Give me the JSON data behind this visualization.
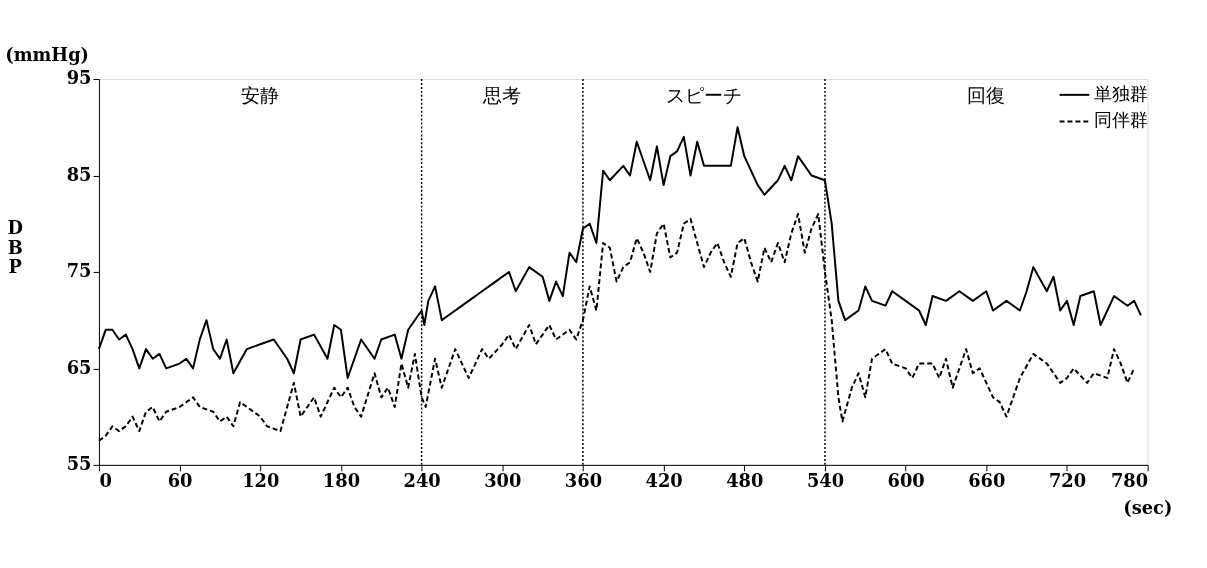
{
  "chart_data": {
    "type": "line",
    "xlabel": "(sec)",
    "ylabel": "DBP",
    "annotations": [
      "(mmHg)",
      "安静",
      "思考",
      "スピーチ",
      "回復"
    ],
    "xlim": [
      0,
      780
    ],
    "xticks": [
      0,
      60,
      120,
      180,
      240,
      300,
      360,
      420,
      480,
      540,
      600,
      660,
      720,
      780
    ],
    "ylim": [
      55,
      95
    ],
    "yticks": [
      55,
      65,
      75,
      85,
      95
    ],
    "grid": false,
    "legend": "top right",
    "ref_lines": [
      {
        "axis": "x",
        "value": 240,
        "line_style": "dotted",
        "color": "#000000"
      },
      {
        "axis": "x",
        "value": 360,
        "line_style": "dotted",
        "color": "#000000"
      },
      {
        "axis": "x",
        "value": 540,
        "line_style": "dotted",
        "color": "#000000"
      }
    ],
    "series": [
      {
        "name": "単独群",
        "color": "#000000",
        "line_style": "solid",
        "x": [
          0,
          5,
          10,
          15,
          20,
          25,
          30,
          35,
          40,
          45,
          50,
          60,
          65,
          70,
          75,
          80,
          85,
          90,
          95,
          100,
          110,
          120,
          130,
          140,
          145,
          150,
          160,
          170,
          175,
          180,
          185,
          195,
          205,
          210,
          220,
          225,
          230,
          240,
          242,
          245,
          250,
          255,
          265,
          275,
          285,
          295,
          305,
          310,
          320,
          330,
          335,
          340,
          345,
          350,
          355,
          360,
          365,
          370,
          375,
          380,
          390,
          395,
          400,
          410,
          415,
          420,
          425,
          430,
          435,
          440,
          445,
          450,
          460,
          470,
          475,
          480,
          490,
          495,
          505,
          510,
          515,
          520,
          530,
          540,
          545,
          550,
          555,
          565,
          570,
          575,
          585,
          590,
          600,
          610,
          615,
          620,
          630,
          640,
          650,
          660,
          665,
          675,
          685,
          690,
          695,
          705,
          710,
          715,
          720,
          725,
          730,
          740,
          745,
          755,
          765,
          770,
          775
        ],
        "values": [
          67,
          69,
          69,
          68,
          68.5,
          67,
          65,
          67,
          66,
          66.5,
          65,
          65.5,
          66,
          65,
          68,
          70,
          67,
          66,
          68,
          64.5,
          67,
          67.5,
          68,
          66,
          64.5,
          68,
          68.5,
          66,
          69.5,
          69,
          64,
          68,
          66,
          68,
          68.5,
          66,
          69,
          71,
          69.5,
          72,
          73.5,
          70,
          71,
          72,
          73,
          74,
          75,
          73,
          75.5,
          74.5,
          72,
          74,
          72.5,
          77,
          76,
          79.5,
          80,
          78,
          85.5,
          84.5,
          86,
          85,
          88.5,
          84.5,
          88,
          84,
          87,
          87.5,
          89,
          85,
          88.5,
          86,
          86,
          86,
          90,
          87,
          84,
          83,
          84.5,
          86,
          84.5,
          87,
          85,
          84.5,
          80,
          72,
          70,
          71,
          73.5,
          72,
          71.5,
          73,
          72,
          71,
          69.5,
          72.5,
          72,
          73,
          72,
          73,
          71,
          72,
          71,
          73,
          75.5,
          73,
          74.5,
          71,
          72,
          69.5,
          72.5,
          73,
          69.5,
          72.5,
          71.5,
          72,
          70.5
        ]
      },
      {
        "name": "同伴群",
        "color": "#000000",
        "line_style": "dashed",
        "x": [
          0,
          5,
          10,
          15,
          20,
          25,
          30,
          35,
          40,
          45,
          50,
          60,
          70,
          75,
          85,
          90,
          95,
          100,
          105,
          115,
          120,
          125,
          135,
          140,
          145,
          150,
          160,
          165,
          175,
          180,
          185,
          190,
          195,
          205,
          210,
          215,
          220,
          225,
          230,
          235,
          240,
          243,
          250,
          255,
          265,
          275,
          285,
          290,
          300,
          305,
          310,
          320,
          325,
          335,
          340,
          350,
          355,
          360,
          365,
          370,
          375,
          380,
          385,
          390,
          395,
          400,
          405,
          410,
          415,
          420,
          425,
          430,
          435,
          440,
          445,
          450,
          455,
          460,
          465,
          470,
          475,
          480,
          485,
          490,
          495,
          500,
          505,
          510,
          515,
          520,
          525,
          530,
          535,
          540,
          545,
          550,
          553,
          560,
          565,
          570,
          575,
          585,
          590,
          600,
          605,
          610,
          620,
          625,
          630,
          635,
          645,
          650,
          655,
          665,
          670,
          675,
          685,
          695,
          705,
          715,
          720,
          725,
          735,
          740,
          750,
          755,
          760,
          765,
          770
        ],
        "values": [
          57.5,
          58,
          59,
          58.5,
          59,
          60,
          58.5,
          60.5,
          61,
          59.5,
          60.5,
          61,
          62,
          61,
          60.5,
          59.5,
          60,
          59,
          61.5,
          60.5,
          60,
          59,
          58.5,
          61,
          63.5,
          60,
          62,
          60,
          63,
          62,
          63,
          61,
          60,
          64.5,
          62,
          63,
          61,
          65.5,
          63,
          66.5,
          62,
          61,
          66,
          63,
          67,
          64,
          67,
          66,
          67.5,
          68.5,
          67,
          69.5,
          67.5,
          69.5,
          68,
          69,
          68,
          70,
          73.5,
          71,
          78,
          77.5,
          74,
          75.5,
          76,
          78.5,
          77,
          75,
          79,
          80,
          76.5,
          77,
          80,
          80.5,
          78,
          75.5,
          77,
          78,
          76,
          74.5,
          78,
          78.5,
          76,
          74,
          77.5,
          76,
          78,
          76,
          79,
          81,
          77,
          79.5,
          81,
          75,
          70,
          62,
          59.5,
          63,
          64.5,
          62,
          66,
          67,
          65.5,
          65,
          64,
          65.5,
          65.5,
          64,
          66,
          63,
          67,
          64.5,
          65,
          62,
          61.5,
          60,
          64,
          66.5,
          65.5,
          63.5,
          64,
          65,
          63.5,
          64.5,
          64,
          67,
          65.5,
          63.5,
          65
        ]
      }
    ]
  }
}
